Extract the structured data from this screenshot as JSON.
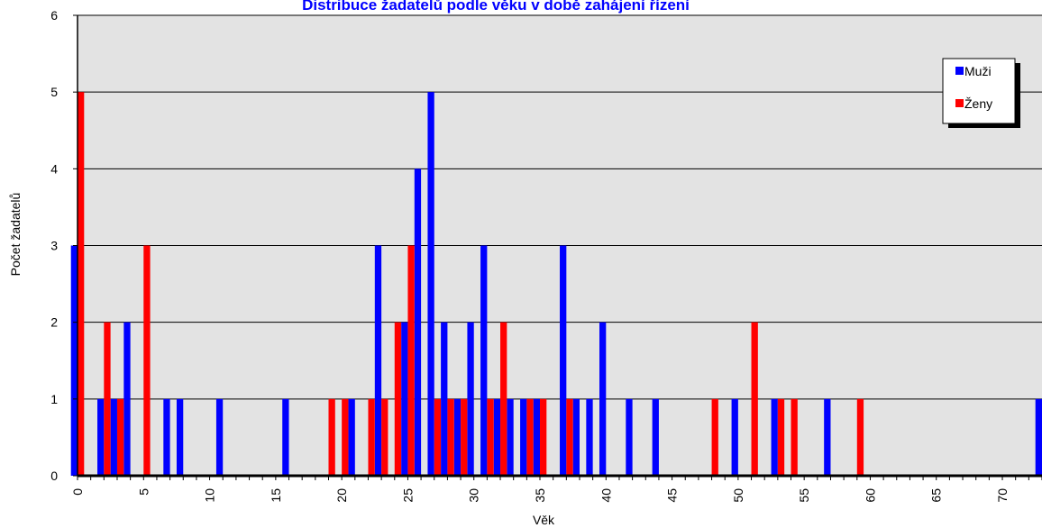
{
  "chart_data": {
    "type": "bar",
    "title": "Distribuce žadatelů podle věku v době zahájení řízení",
    "xlabel": "Věk",
    "ylabel": "Počet žadatelů",
    "xlim": [
      0,
      73
    ],
    "ylim": [
      0,
      6
    ],
    "yticks": [
      0,
      1,
      2,
      3,
      4,
      5,
      6
    ],
    "xticks": [
      0,
      5,
      10,
      15,
      20,
      25,
      30,
      35,
      40,
      45,
      50,
      55,
      60,
      65,
      70
    ],
    "legend_position": "top-right",
    "colors": {
      "muzi": "#0000ff",
      "zeny": "#ff0000",
      "plot_bg": "#e3e3e3"
    },
    "series": [
      {
        "name": "Muži",
        "color": "#0000ff",
        "points": [
          {
            "x": 0,
            "y": 3
          },
          {
            "x": 2,
            "y": 1
          },
          {
            "x": 3,
            "y": 1
          },
          {
            "x": 4,
            "y": 2
          },
          {
            "x": 7,
            "y": 1
          },
          {
            "x": 8,
            "y": 1
          },
          {
            "x": 11,
            "y": 1
          },
          {
            "x": 16,
            "y": 1
          },
          {
            "x": 21,
            "y": 1
          },
          {
            "x": 23,
            "y": 3
          },
          {
            "x": 25,
            "y": 2
          },
          {
            "x": 26,
            "y": 4
          },
          {
            "x": 27,
            "y": 5
          },
          {
            "x": 28,
            "y": 2
          },
          {
            "x": 29,
            "y": 1
          },
          {
            "x": 30,
            "y": 2
          },
          {
            "x": 31,
            "y": 3
          },
          {
            "x": 32,
            "y": 1
          },
          {
            "x": 33,
            "y": 1
          },
          {
            "x": 34,
            "y": 1
          },
          {
            "x": 35,
            "y": 1
          },
          {
            "x": 37,
            "y": 3
          },
          {
            "x": 38,
            "y": 1
          },
          {
            "x": 39,
            "y": 1
          },
          {
            "x": 40,
            "y": 2
          },
          {
            "x": 42,
            "y": 1
          },
          {
            "x": 44,
            "y": 1
          },
          {
            "x": 50,
            "y": 1
          },
          {
            "x": 53,
            "y": 1
          },
          {
            "x": 57,
            "y": 1
          },
          {
            "x": 73,
            "y": 1
          }
        ]
      },
      {
        "name": "Ženy",
        "color": "#ff0000",
        "points": [
          {
            "x": 0,
            "y": 5
          },
          {
            "x": 2,
            "y": 2
          },
          {
            "x": 3,
            "y": 1
          },
          {
            "x": 5,
            "y": 3
          },
          {
            "x": 19,
            "y": 1
          },
          {
            "x": 20,
            "y": 1
          },
          {
            "x": 22,
            "y": 1
          },
          {
            "x": 23,
            "y": 1
          },
          {
            "x": 24,
            "y": 2
          },
          {
            "x": 25,
            "y": 3
          },
          {
            "x": 27,
            "y": 1
          },
          {
            "x": 28,
            "y": 1
          },
          {
            "x": 29,
            "y": 1
          },
          {
            "x": 31,
            "y": 1
          },
          {
            "x": 32,
            "y": 2
          },
          {
            "x": 34,
            "y": 1
          },
          {
            "x": 35,
            "y": 1
          },
          {
            "x": 37,
            "y": 1
          },
          {
            "x": 48,
            "y": 1
          },
          {
            "x": 51,
            "y": 2
          },
          {
            "x": 53,
            "y": 1
          },
          {
            "x": 54,
            "y": 1
          },
          {
            "x": 59,
            "y": 1
          }
        ]
      }
    ]
  }
}
